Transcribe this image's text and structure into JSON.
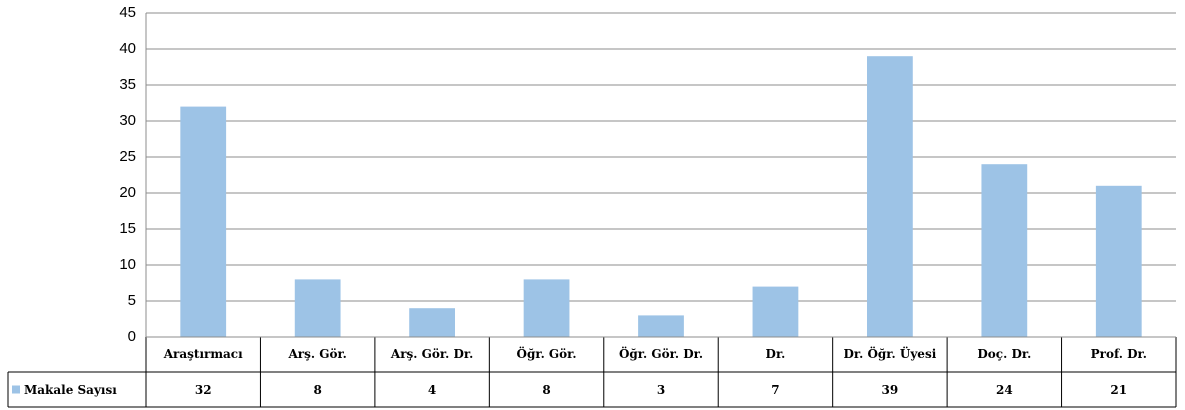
{
  "chart_data": {
    "type": "bar",
    "categories": [
      "Araştırmacı",
      "Arş. Gör.",
      "Arş. Gör. Dr.",
      "Öğr. Gör.",
      "Öğr. Gör. Dr.",
      "Dr.",
      "Dr. Öğr. Üyesi",
      "Doç. Dr.",
      "Prof. Dr."
    ],
    "series": [
      {
        "name": "Makale Sayısı",
        "color": "#9dc3e6",
        "values": [
          32,
          8,
          4,
          8,
          3,
          7,
          39,
          24,
          21
        ]
      }
    ],
    "ylim": [
      0,
      45
    ],
    "yticks": [
      0,
      5,
      10,
      15,
      20,
      25,
      30,
      35,
      40,
      45
    ],
    "grid": true,
    "data_table": true
  }
}
